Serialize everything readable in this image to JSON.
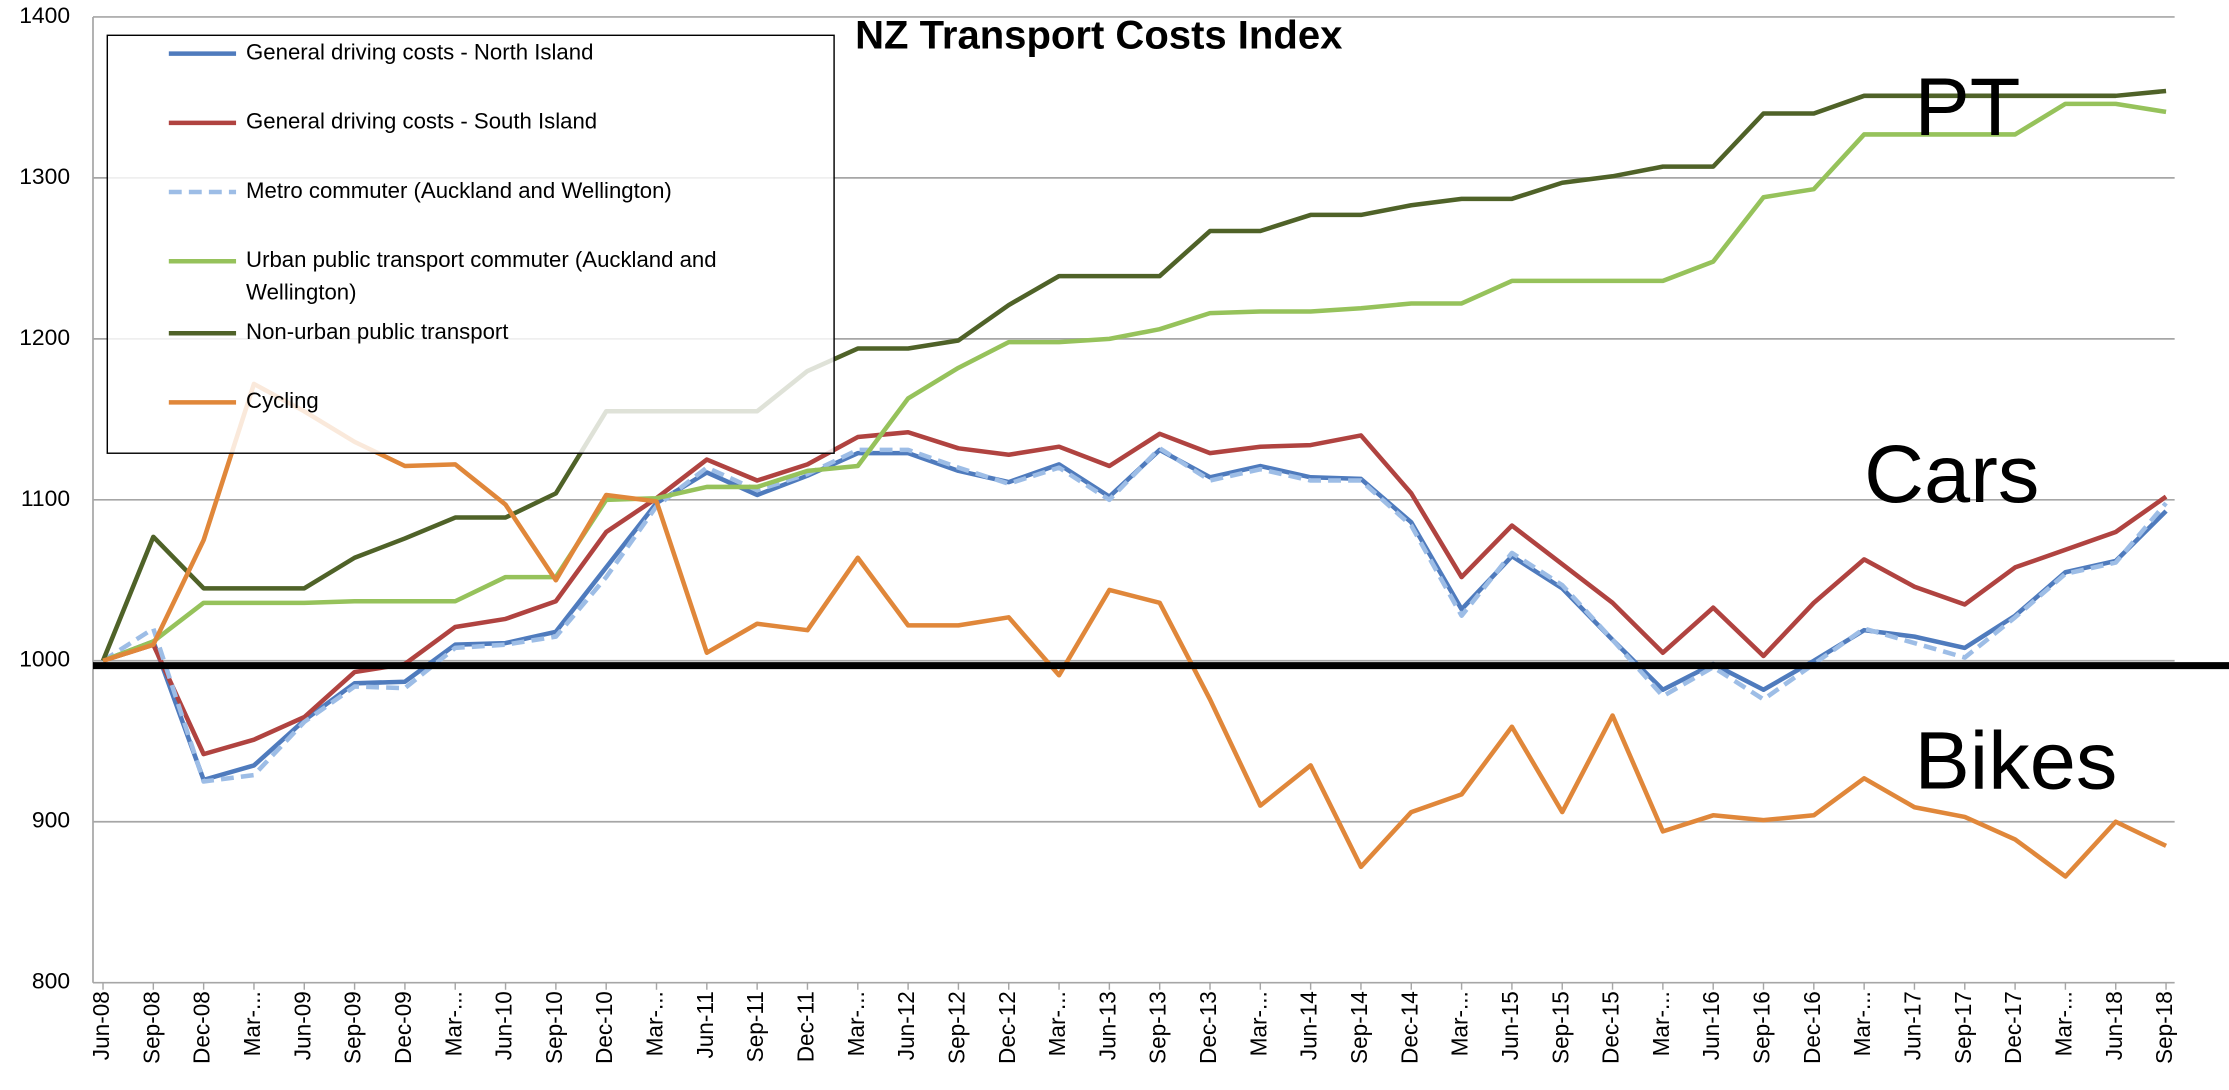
{
  "chart_data": {
    "type": "line",
    "title": "NZ Transport Costs Index",
    "categories": [
      "Jun-08",
      "Sep-08",
      "Dec-08",
      "Mar-...",
      "Jun-09",
      "Sep-09",
      "Dec-09",
      "Mar-...",
      "Jun-10",
      "Sep-10",
      "Dec-10",
      "Mar-...",
      "Jun-11",
      "Sep-11",
      "Dec-11",
      "Mar-...",
      "Jun-12",
      "Sep-12",
      "Dec-12",
      "Mar-...",
      "Jun-13",
      "Sep-13",
      "Dec-13",
      "Mar-...",
      "Jun-14",
      "Sep-14",
      "Dec-14",
      "Mar-...",
      "Jun-15",
      "Sep-15",
      "Dec-15",
      "Mar-...",
      "Jun-16",
      "Sep-16",
      "Dec-16",
      "Mar-...",
      "Jun-17",
      "Sep-17",
      "Dec-17",
      "Mar-...",
      "Jun-18",
      "Sep-18"
    ],
    "series": [
      {
        "name": "General driving costs - North Island",
        "color": "#4f7bbd",
        "values": [
          1000,
          1012,
          926,
          935,
          963,
          986,
          987,
          1010,
          1011,
          1018,
          1058,
          1098,
          1117,
          1103,
          1115,
          1129,
          1129,
          1118,
          1111,
          1122,
          1102,
          1131,
          1114,
          1121,
          1114,
          1113,
          1086,
          1032,
          1065,
          1045,
          1013,
          982,
          998,
          982,
          1000,
          1019,
          1015,
          1008,
          1028,
          1055,
          1062,
          1093
        ]
      },
      {
        "name": "General driving costs - South Island",
        "color": "#b04340",
        "values": [
          1000,
          1010,
          942,
          951,
          965,
          993,
          998,
          1021,
          1026,
          1037,
          1080,
          1101,
          1125,
          1112,
          1122,
          1139,
          1142,
          1132,
          1128,
          1133,
          1121,
          1141,
          1129,
          1133,
          1134,
          1140,
          1104,
          1052,
          1084,
          1060,
          1036,
          1005,
          1033,
          1003,
          1036,
          1063,
          1046,
          1035,
          1058,
          1069,
          1080,
          1102
        ]
      },
      {
        "name": "Metro commuter (Auckland and Wellington)",
        "color": "#9dbde6",
        "dashed": true,
        "values": [
          1000,
          1020,
          925,
          929,
          962,
          984,
          983,
          1008,
          1010,
          1015,
          1052,
          1096,
          1120,
          1106,
          1116,
          1131,
          1131,
          1120,
          1110,
          1120,
          1100,
          1132,
          1112,
          1119,
          1112,
          1112,
          1084,
          1028,
          1067,
          1047,
          1013,
          978,
          996,
          976,
          998,
          1020,
          1011,
          1002,
          1027,
          1054,
          1061,
          1098
        ]
      },
      {
        "name": "Urban public transport commuter (Auckland and Wellington)",
        "color": "#96c25b",
        "values": [
          1000,
          1012,
          1036,
          1036,
          1036,
          1037,
          1037,
          1037,
          1052,
          1052,
          1100,
          1101,
          1108,
          1108,
          1118,
          1121,
          1163,
          1182,
          1198,
          1198,
          1200,
          1206,
          1216,
          1217,
          1217,
          1219,
          1222,
          1222,
          1236,
          1236,
          1236,
          1236,
          1248,
          1288,
          1293,
          1327,
          1327,
          1327,
          1327,
          1346,
          1346,
          1341
        ]
      },
      {
        "name": "Non-urban public transport",
        "color": "#4f6228",
        "values": [
          1000,
          1077,
          1045,
          1045,
          1045,
          1064,
          1076,
          1089,
          1089,
          1104,
          1155,
          1155,
          1155,
          1155,
          1180,
          1194,
          1194,
          1199,
          1221,
          1239,
          1239,
          1239,
          1267,
          1267,
          1277,
          1277,
          1283,
          1287,
          1287,
          1297,
          1301,
          1307,
          1307,
          1340,
          1340,
          1351,
          1351,
          1351,
          1351,
          1351,
          1351,
          1354
        ]
      },
      {
        "name": "Cycling",
        "color": "#e0873a",
        "values": [
          1000,
          1010,
          1075,
          1172,
          1155,
          1136,
          1121,
          1122,
          1097,
          1050,
          1103,
          1099,
          1005,
          1023,
          1019,
          1064,
          1022,
          1022,
          1027,
          991,
          1044,
          1036,
          976,
          910,
          935,
          872,
          906,
          917,
          959,
          906,
          966,
          894,
          904,
          901,
          904,
          927,
          909,
          903,
          889,
          866,
          900,
          885
        ]
      }
    ],
    "ylim": [
      800,
      1400
    ],
    "yticks": [
      800,
      900,
      1000,
      1100,
      1200,
      1300,
      1400
    ],
    "grid": true,
    "reference_line": 997,
    "annotations": [
      {
        "text": "PT",
        "x": 36,
        "y": 1340
      },
      {
        "text": "Cars",
        "x": 35,
        "y": 1112
      },
      {
        "text": "Bikes",
        "x": 36,
        "y": 934
      }
    ]
  }
}
